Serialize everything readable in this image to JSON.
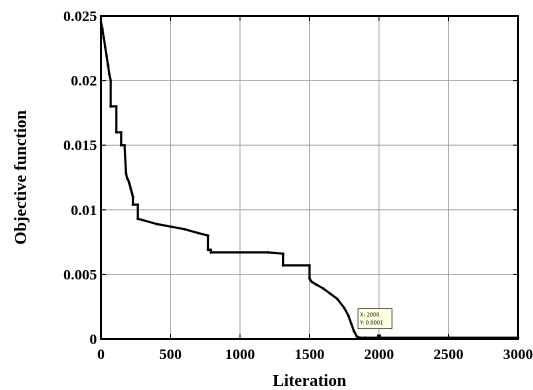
{
  "chart_data": {
    "type": "line",
    "title": "",
    "xlabel": "Literation",
    "ylabel": "Objective function",
    "xlim": [
      0,
      3000
    ],
    "ylim": [
      0,
      0.025
    ],
    "x_ticks": [
      0,
      500,
      1000,
      1500,
      2000,
      2500,
      3000
    ],
    "y_ticks": [
      0,
      0.005,
      0.01,
      0.015,
      0.02,
      0.025
    ],
    "x_tick_labels": [
      "0",
      "500",
      "1000",
      "1500",
      "2000",
      "2500",
      "3000"
    ],
    "y_tick_labels": [
      "0",
      "0.005",
      "0.01",
      "0.015",
      "0.02",
      "0.025"
    ],
    "grid": true,
    "series": [
      {
        "color": "#000000",
        "x": [
          0,
          10,
          20,
          30,
          40,
          50,
          60,
          70,
          70,
          110,
          110,
          145,
          145,
          170,
          180,
          190,
          200,
          205,
          210,
          215,
          220,
          225,
          230,
          230,
          265,
          265,
          300,
          400,
          500,
          600,
          700,
          770,
          770,
          790,
          790,
          1000,
          1200,
          1310,
          1310,
          1500,
          1500,
          1510,
          1520,
          1550,
          1600,
          1650,
          1700,
          1750,
          1780,
          1800,
          1820,
          1840,
          1860,
          1900,
          2000,
          2500,
          3000
        ],
        "y": [
          0.0245,
          0.024,
          0.0233,
          0.0226,
          0.0219,
          0.0212,
          0.0205,
          0.02,
          0.018,
          0.018,
          0.016,
          0.016,
          0.015,
          0.015,
          0.0128,
          0.0124,
          0.0122,
          0.012,
          0.0118,
          0.0116,
          0.0114,
          0.0112,
          0.011,
          0.0104,
          0.0104,
          0.0093,
          0.0092,
          0.0089,
          0.0087,
          0.0085,
          0.0082,
          0.008,
          0.0069,
          0.0069,
          0.0067,
          0.0067,
          0.0067,
          0.0066,
          0.0057,
          0.0057,
          0.0047,
          0.0045,
          0.0044,
          0.0042,
          0.0039,
          0.0035,
          0.0031,
          0.0024,
          0.0018,
          0.0012,
          0.0006,
          0.0002,
          0.0001,
          0.0001,
          0.0001,
          0.0001,
          0.0001
        ]
      }
    ],
    "datatip": {
      "x_text": "X: 2000",
      "y_text": "Y: 0.0001",
      "x": 2000,
      "y": 0.0001
    }
  }
}
